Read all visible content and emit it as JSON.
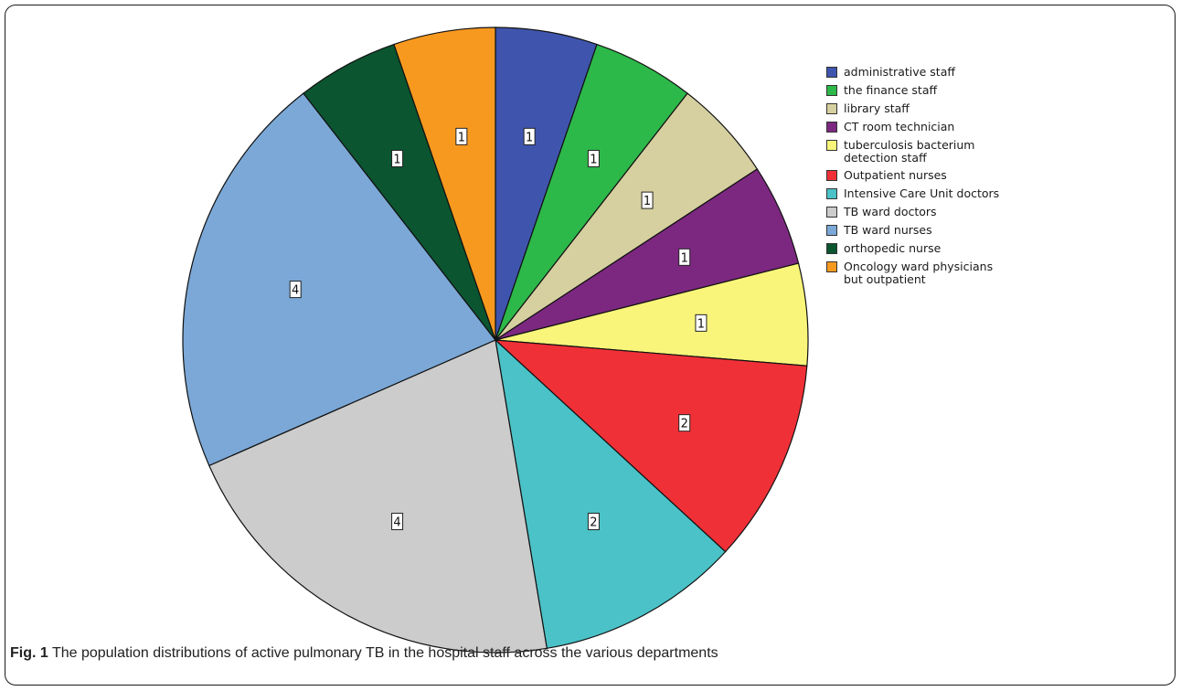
{
  "chart_data": {
    "type": "pie",
    "title": "",
    "slices": [
      {
        "label": "administrative staff",
        "value": 1,
        "color": "#3f55ad"
      },
      {
        "label": "the finance staff",
        "value": 1,
        "color": "#2db84a"
      },
      {
        "label": "library staff",
        "value": 1,
        "color": "#d6cf9f"
      },
      {
        "label": "CT room technician",
        "value": 1,
        "color": "#7c2880"
      },
      {
        "label": "tuberculosis bacterium detection staff",
        "value": 1,
        "color": "#f9f57a"
      },
      {
        "label": "Outpatient nurses",
        "value": 2,
        "color": "#f03037"
      },
      {
        "label": "Intensive Care Unit doctors",
        "value": 2,
        "color": "#4ac2c7"
      },
      {
        "label": "TB ward doctors",
        "value": 4,
        "color": "#cccccc"
      },
      {
        "label": "TB ward nurses",
        "value": 4,
        "color": "#7ba8d6"
      },
      {
        "label": "orthopedic nurse",
        "value": 1,
        "color": "#0b5530"
      },
      {
        "label": "Oncology ward physicians but outpatient",
        "value": 1,
        "color": "#f7991f"
      }
    ],
    "data_labels": true,
    "legend_position": "right",
    "start": "top, clockwise"
  },
  "legend": {
    "items": [
      "administrative staff",
      "the finance staff",
      "library staff",
      "CT room technician",
      [
        "tuberculosis bacterium",
        "detection staff"
      ],
      "Outpatient nurses",
      "Intensive Care Unit doctors",
      "TB ward doctors",
      "TB ward nurses",
      "orthopedic nurse",
      [
        "Oncology ward physicians",
        "but outpatient"
      ]
    ]
  },
  "caption": {
    "label": "Fig. 1",
    "text": " The population distributions of active pulmonary TB in the hospital staff across the various departments"
  }
}
